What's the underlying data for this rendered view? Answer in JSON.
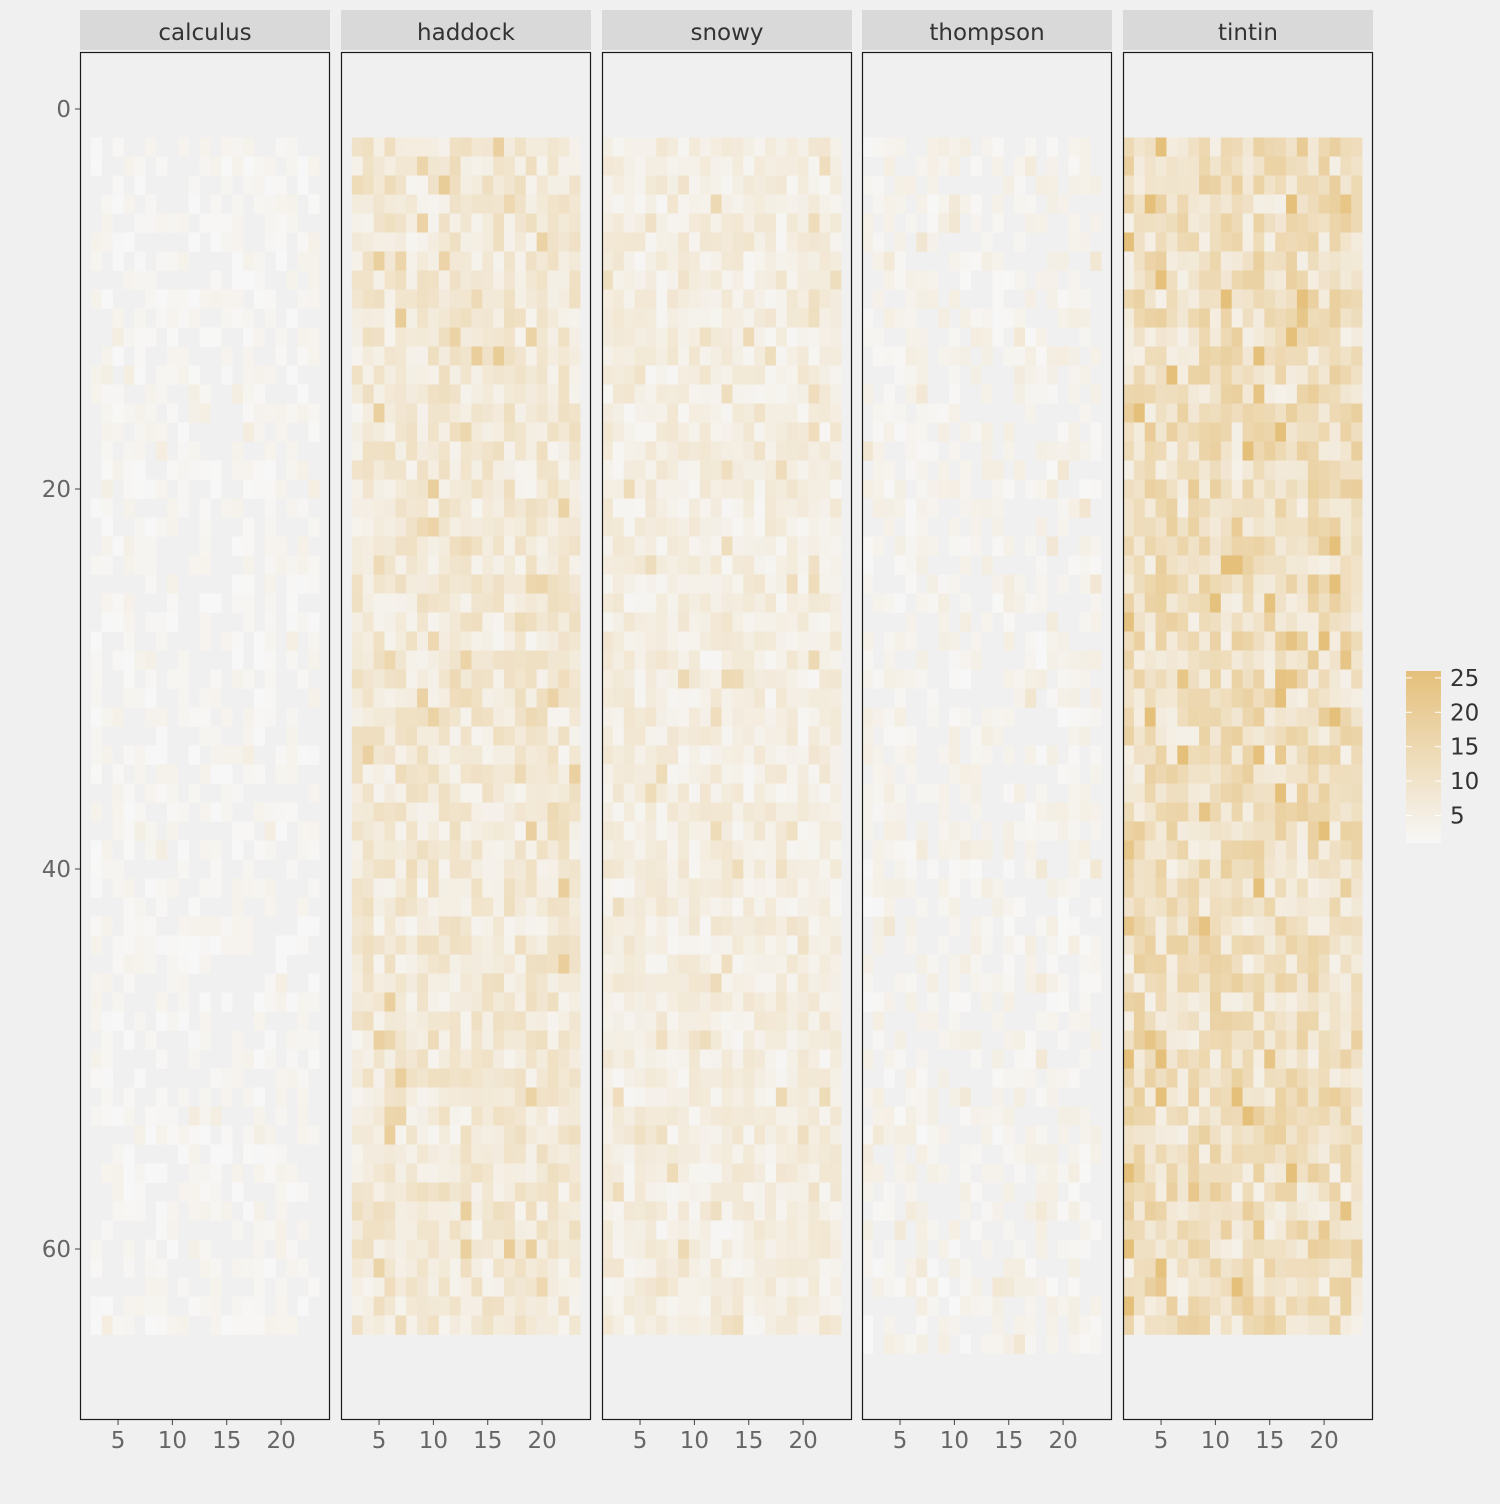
{
  "chart_data": {
    "type": "heatmap",
    "title": "",
    "xlabel": "",
    "ylabel": "",
    "facets": [
      "calculus",
      "haddock",
      "snowy",
      "thompson",
      "tintin"
    ],
    "x_ticks": [
      5,
      10,
      15,
      20
    ],
    "xlim": [
      1.5,
      24.5
    ],
    "y_ticks": [
      0,
      20,
      40,
      60
    ],
    "ylim": [
      -3,
      69
    ],
    "y_reversed": true,
    "grid": true,
    "legend": {
      "position": "right",
      "ticks": [
        5,
        10,
        15,
        20,
        25
      ],
      "range": [
        1,
        26
      ],
      "low_color": "#f7f7f7",
      "high_color": "#e5c07b"
    },
    "colors": {
      "background": "#f0f0f0",
      "panel": "#f0f0f0",
      "strip": "#d9d9d9",
      "border": "#1a1a1a",
      "empty_cell": "#f0f0f0"
    },
    "tile_extent": {
      "calculus": {
        "x": [
          3,
          23
        ],
        "y": [
          2,
          64
        ]
      },
      "haddock": {
        "x": [
          3,
          23
        ],
        "y": [
          2,
          64
        ]
      },
      "snowy": {
        "x": [
          2,
          23
        ],
        "y": [
          2,
          64
        ]
      },
      "thompson": {
        "x": [
          2,
          23
        ],
        "y": [
          2,
          65
        ]
      },
      "tintin": {
        "x": [
          2,
          23
        ],
        "y": [
          2,
          64
        ]
      }
    },
    "mean_intensity": {
      "calculus": 2,
      "haddock": 7,
      "snowy": 5,
      "thompson": 3,
      "tintin": 11
    }
  }
}
